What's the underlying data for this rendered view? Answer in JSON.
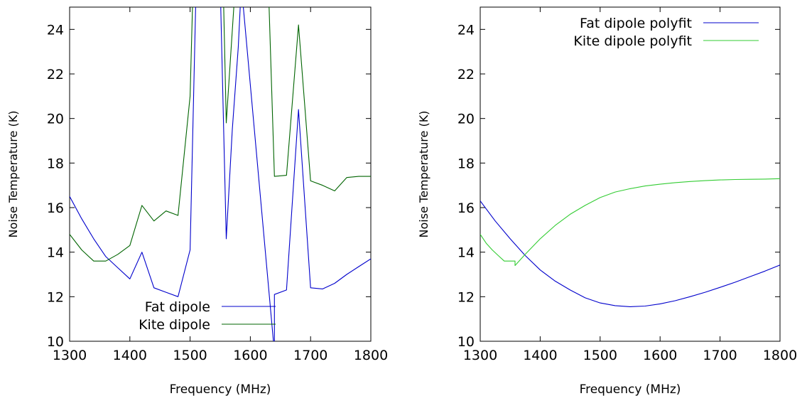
{
  "chart_data": [
    {
      "type": "line",
      "xlabel": "Frequency (MHz)",
      "ylabel": "Noise Temperature (K)",
      "xlim": [
        1300,
        1800
      ],
      "ylim": [
        10,
        25
      ],
      "xticks": [
        "1300",
        "1400",
        "1500",
        "1600",
        "1700",
        "1800"
      ],
      "yticks": [
        "10",
        "12",
        "14",
        "16",
        "18",
        "20",
        "22",
        "24"
      ],
      "legend_position": "bottom-left",
      "series": [
        {
          "name": "Fat dipole",
          "color": "#0000cc",
          "points": [
            [
              1300,
              16.5
            ],
            [
              1320,
              15.5
            ],
            [
              1340,
              14.6
            ],
            [
              1360,
              13.8
            ],
            [
              1380,
              13.3
            ],
            [
              1400,
              12.8
            ],
            [
              1420,
              14.0
            ],
            [
              1440,
              12.4
            ],
            [
              1460,
              12.2
            ],
            [
              1480,
              12.0
            ],
            [
              1500,
              14.1
            ],
            [
              1510,
              26.0
            ],
            [
              1550,
              26.0
            ],
            [
              1560,
              14.6
            ],
            [
              1570,
              19.5
            ],
            [
              1580,
              23.2
            ],
            [
              1585,
              26.0
            ],
            [
              1640,
              9.5
            ],
            [
              1640,
              12.1
            ],
            [
              1660,
              12.3
            ],
            [
              1680,
              20.4
            ],
            [
              1700,
              12.4
            ],
            [
              1720,
              12.35
            ],
            [
              1740,
              12.6
            ],
            [
              1760,
              13.0
            ],
            [
              1780,
              13.35
            ],
            [
              1800,
              13.7
            ]
          ]
        },
        {
          "name": "Kite dipole",
          "color": "#006400",
          "points": [
            [
              1300,
              14.8
            ],
            [
              1320,
              14.1
            ],
            [
              1340,
              13.6
            ],
            [
              1360,
              13.6
            ],
            [
              1380,
              13.9
            ],
            [
              1400,
              14.3
            ],
            [
              1420,
              16.1
            ],
            [
              1440,
              15.4
            ],
            [
              1460,
              15.85
            ],
            [
              1480,
              15.65
            ],
            [
              1500,
              21.0
            ],
            [
              1505,
              26.0
            ],
            [
              1555,
              26.0
            ],
            [
              1560,
              19.8
            ],
            [
              1575,
              26.0
            ],
            [
              1630,
              26.0
            ],
            [
              1640,
              17.4
            ],
            [
              1660,
              17.45
            ],
            [
              1680,
              24.2
            ],
            [
              1700,
              17.2
            ],
            [
              1720,
              17.0
            ],
            [
              1740,
              16.75
            ],
            [
              1760,
              17.35
            ],
            [
              1780,
              17.4
            ],
            [
              1800,
              17.4
            ]
          ]
        }
      ]
    },
    {
      "type": "line",
      "xlabel": "Frequency (MHz)",
      "ylabel": "Noise Temperature (K)",
      "xlim": [
        1300,
        1800
      ],
      "ylim": [
        10,
        25
      ],
      "xticks": [
        "1300",
        "1400",
        "1500",
        "1600",
        "1700",
        "1800"
      ],
      "yticks": [
        "10",
        "12",
        "14",
        "16",
        "18",
        "20",
        "22",
        "24"
      ],
      "legend_position": "top-right",
      "series": [
        {
          "name": "Fat dipole polyfit",
          "color": "#0000cc",
          "points": [
            [
              1300,
              16.3
            ],
            [
              1325,
              15.4
            ],
            [
              1350,
              14.6
            ],
            [
              1375,
              13.85
            ],
            [
              1400,
              13.2
            ],
            [
              1425,
              12.7
            ],
            [
              1450,
              12.3
            ],
            [
              1475,
              11.95
            ],
            [
              1500,
              11.72
            ],
            [
              1525,
              11.6
            ],
            [
              1550,
              11.55
            ],
            [
              1575,
              11.58
            ],
            [
              1600,
              11.68
            ],
            [
              1625,
              11.82
            ],
            [
              1650,
              12.0
            ],
            [
              1675,
              12.2
            ],
            [
              1700,
              12.42
            ],
            [
              1725,
              12.65
            ],
            [
              1750,
              12.9
            ],
            [
              1775,
              13.15
            ],
            [
              1800,
              13.42
            ]
          ]
        },
        {
          "name": "Kite dipole polyfit",
          "color": "#33cc33",
          "points": [
            [
              1300,
              14.8
            ],
            [
              1310,
              14.4
            ],
            [
              1320,
              14.1
            ],
            [
              1330,
              13.85
            ],
            [
              1340,
              13.6
            ],
            [
              1350,
              13.6
            ],
            [
              1358,
              13.6
            ],
            [
              1358,
              13.4
            ],
            [
              1375,
              13.9
            ],
            [
              1400,
              14.6
            ],
            [
              1425,
              15.2
            ],
            [
              1450,
              15.7
            ],
            [
              1475,
              16.1
            ],
            [
              1500,
              16.45
            ],
            [
              1525,
              16.7
            ],
            [
              1550,
              16.85
            ],
            [
              1575,
              16.97
            ],
            [
              1600,
              17.05
            ],
            [
              1625,
              17.12
            ],
            [
              1650,
              17.17
            ],
            [
              1675,
              17.21
            ],
            [
              1700,
              17.24
            ],
            [
              1725,
              17.26
            ],
            [
              1750,
              17.27
            ],
            [
              1775,
              17.28
            ],
            [
              1800,
              17.3
            ]
          ]
        }
      ]
    }
  ]
}
